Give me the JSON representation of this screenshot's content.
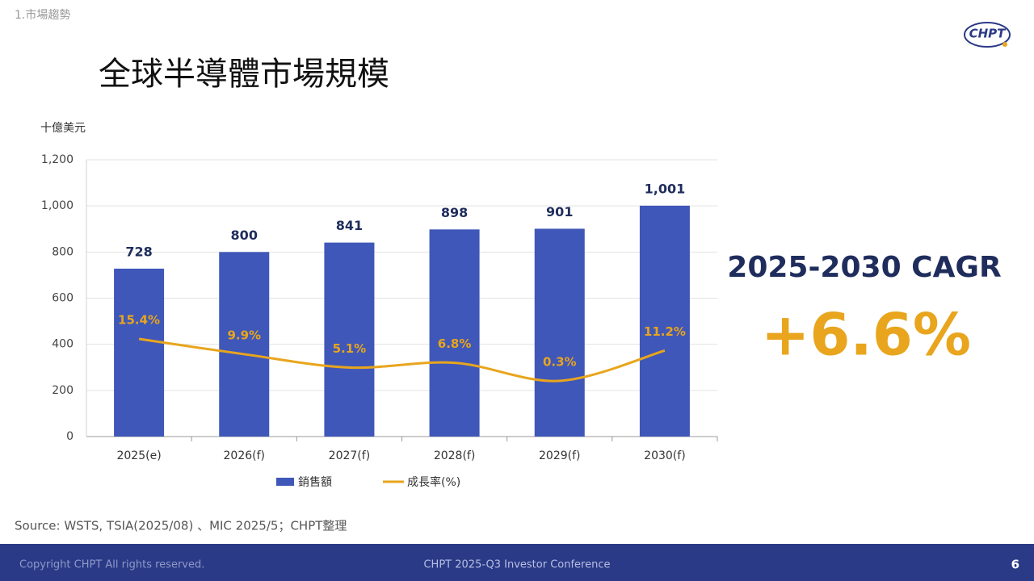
{
  "header": {
    "section": "1.市場趨勢",
    "title": "全球半導體市場規模",
    "logo": "CHPT"
  },
  "chart_data": {
    "type": "bar",
    "y_label": "十億美元",
    "categories": [
      "2025(e)",
      "2026(f)",
      "2027(f)",
      "2028(f)",
      "2029(f)",
      "2030(f)"
    ],
    "series": [
      {
        "name": "銷售額",
        "type": "bar",
        "color": "#3f57b8",
        "values": [
          728,
          800,
          841,
          898,
          901,
          1001
        ],
        "value_labels": [
          "728",
          "800",
          "841",
          "898",
          "901",
          "1,001"
        ]
      },
      {
        "name": "成長率(%)",
        "type": "line",
        "color": "#e8a51d",
        "values": [
          15.4,
          9.9,
          5.1,
          6.8,
          0.3,
          11.2
        ],
        "value_labels": [
          "15.4%",
          "9.9%",
          "5.1%",
          "6.8%",
          "0.3%",
          "11.2%"
        ]
      }
    ],
    "ylim": [
      0,
      1200
    ],
    "yticks": [
      0,
      200,
      400,
      600,
      800,
      {
        "value": 1000,
        "label": "1,000"
      },
      {
        "value": 1200,
        "label": "1,200"
      }
    ],
    "grid": true
  },
  "highlight": {
    "label": "2025-2030 CAGR",
    "value": "+6.6%"
  },
  "source": "Source: WSTS, TSIA(2025/08) 、MIC 2025/5；CHPT整理",
  "footer": {
    "copyright": "Copyright CHPT All rights reserved.",
    "event": "CHPT 2025-Q3 Investor Conference",
    "page": "6"
  }
}
